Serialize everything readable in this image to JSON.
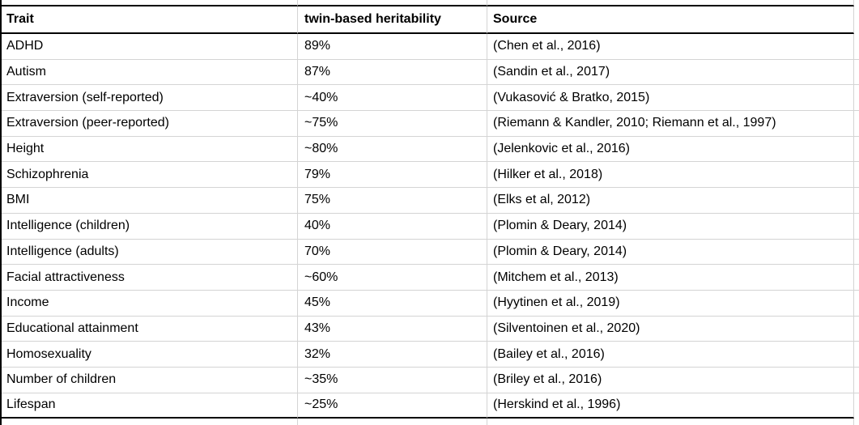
{
  "table": {
    "columns": {
      "trait": "Trait",
      "heritability": "twin-based heritability",
      "source": "Source"
    },
    "rows": [
      {
        "trait": "ADHD",
        "heritability": "89%",
        "source": "(Chen et al., 2016)"
      },
      {
        "trait": "Autism",
        "heritability": "87%",
        "source": "(Sandin et al., 2017)"
      },
      {
        "trait": "Extraversion (self-reported)",
        "heritability": "~40%",
        "source": "(Vukasović & Bratko, 2015)"
      },
      {
        "trait": "Extraversion (peer-reported)",
        "heritability": "~75%",
        "source": "(Riemann & Kandler, 2010; Riemann et al., 1997)"
      },
      {
        "trait": "Height",
        "heritability": "~80%",
        "source": "(Jelenkovic et al., 2016)"
      },
      {
        "trait": "Schizophrenia",
        "heritability": "79%",
        "source": "(Hilker et al., 2018)"
      },
      {
        "trait": "BMI",
        "heritability": "75%",
        "source": "(Elks et al, 2012)"
      },
      {
        "trait": "Intelligence (children)",
        "heritability": "40%",
        "source": "(Plomin & Deary, 2014)"
      },
      {
        "trait": "Intelligence (adults)",
        "heritability": "70%",
        "source": "(Plomin & Deary, 2014)"
      },
      {
        "trait": "Facial attractiveness",
        "heritability": "~60%",
        "source": "(Mitchem et al., 2013)"
      },
      {
        "trait": "Income",
        "heritability": "45%",
        "source": "(Hyytinen et al., 2019)"
      },
      {
        "trait": "Educational attainment",
        "heritability": "43%",
        "source": "(Silventoinen et al., 2020)"
      },
      {
        "trait": "Homosexuality",
        "heritability": "32%",
        "source": "(Bailey et al., 2016)"
      },
      {
        "trait": "Number of children",
        "heritability": "~35%",
        "source": "(Briley et al., 2016)"
      },
      {
        "trait": "Lifespan",
        "heritability": "~25%",
        "source": "(Herskind et al., 1996)"
      }
    ]
  },
  "colors": {
    "gridline": "#d4d4d4",
    "range_border": "#000000",
    "background": "#ffffff",
    "text": "#000000"
  }
}
